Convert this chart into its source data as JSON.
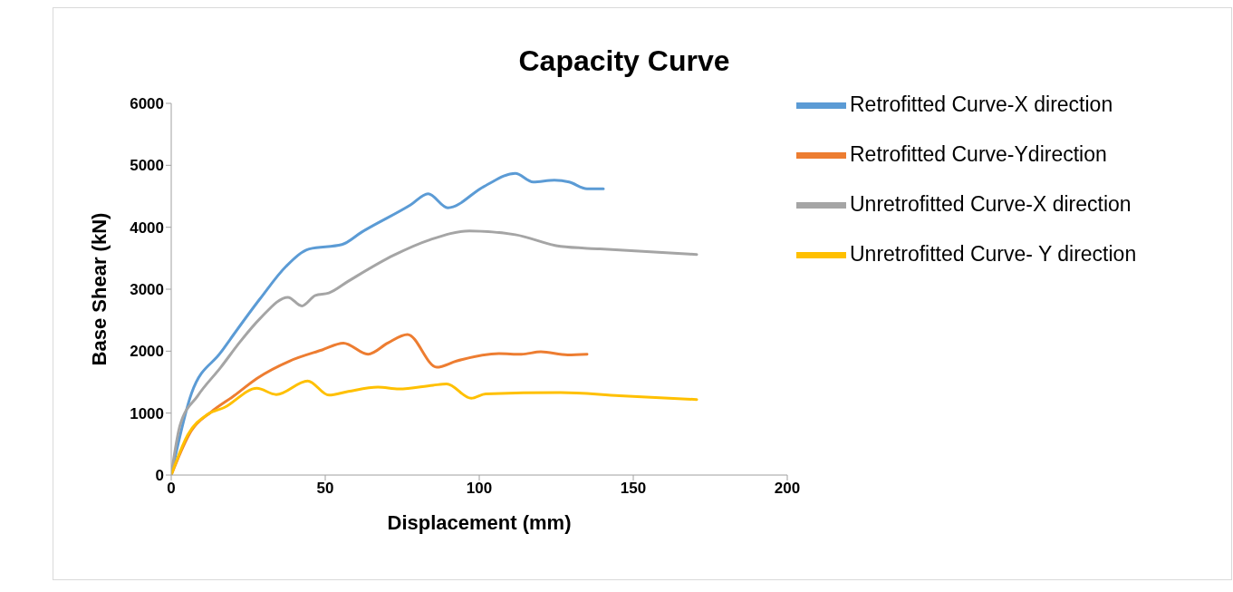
{
  "chart_data": {
    "type": "line",
    "title": "Capacity Curve",
    "xlabel": "Displacement (mm)",
    "ylabel": "Base Shear (kN)",
    "xlim": [
      0,
      200
    ],
    "xticks": [
      0,
      50,
      100,
      150,
      200
    ],
    "ylim": [
      0,
      6000
    ],
    "yticks": [
      0,
      1000,
      2000,
      3000,
      4000,
      5000,
      6000
    ],
    "grid": false,
    "legend": "right",
    "marker": "none",
    "line_style": "solid",
    "series": [
      {
        "name": "Retrofitted Curve-X direction",
        "color": "#5b9bd5",
        "x": [
          0,
          6.6,
          16.1,
          28.9,
          37.3,
          44.8,
          55.4,
          61.8,
          77.7,
          83.4,
          89.8,
          101.6,
          111.7,
          117.5,
          124.4,
          129.2,
          135,
          140.3
        ],
        "values": [
          0,
          1320,
          1980,
          2850,
          3370,
          3650,
          3720,
          3920,
          4360,
          4540,
          4315,
          4660,
          4870,
          4730,
          4760,
          4730,
          4620,
          4620
        ]
      },
      {
        "name": "Retrofitted Curve-Ydirection",
        "color": "#ed7d31",
        "x": [
          0,
          6.6,
          13,
          20.4,
          27.8,
          38.4,
          49,
          55.9,
          63.9,
          70.3,
          76.7,
          86.2,
          92.6,
          106.4,
          113.7,
          120,
          128.7,
          135
        ],
        "values": [
          0,
          720,
          1020,
          1280,
          1560,
          1840,
          2020,
          2130,
          1950,
          2130,
          2270,
          1740,
          1840,
          1960,
          1950,
          1990,
          1940,
          1950
        ]
      },
      {
        "name": "Unretrofitted Curve-X direction",
        "color": "#a5a5a5",
        "x": [
          0,
          2.9,
          8.6,
          16.1,
          22.5,
          28.9,
          37.9,
          42.4,
          46.8,
          51.2,
          57.5,
          72.3,
          84.1,
          96.8,
          111.7,
          126.4,
          139.2,
          170.6
        ],
        "values": [
          0,
          810,
          1280,
          1740,
          2160,
          2530,
          2870,
          2730,
          2900,
          2940,
          3130,
          3550,
          3800,
          3940,
          3880,
          3690,
          3650,
          3560
        ]
      },
      {
        "name": "Unretrofitted Curve- Y direction",
        "color": "#ffc000",
        "x": [
          0,
          5.4,
          11.8,
          17.2,
          27.8,
          34.1,
          44.3,
          51.2,
          57.5,
          67.1,
          73.9,
          85,
          89.4,
          97.4,
          102.1,
          126.4,
          145.5,
          170.6
        ],
        "values": [
          0,
          650,
          980,
          1090,
          1400,
          1300,
          1520,
          1290,
          1350,
          1420,
          1390,
          1450,
          1470,
          1240,
          1310,
          1330,
          1280,
          1220
        ]
      }
    ]
  }
}
